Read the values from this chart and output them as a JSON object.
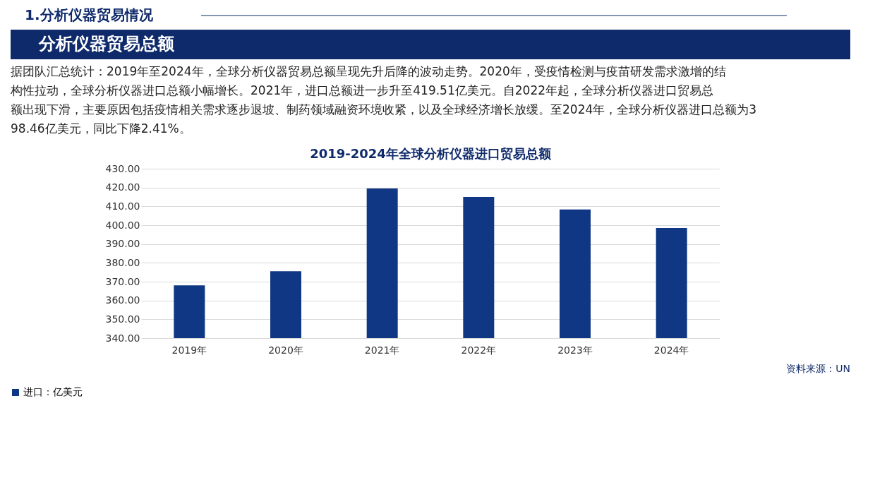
{
  "chart_data": {
    "type": "bar",
    "title": "2019-2024年全球分析仪器进口贸易总额",
    "subtitle": "1.分析仪器贸易情况",
    "annotations": [
      "分析仪器贸易总额",
      "据团队汇总统计：2019年至2024年，全球分析仪器贸易总额呈现先升后降的波动走势。2020年，受疫情检测与疫苗研发需求激增的结构性拉动，全球分析仪器进口总额小幅增长。2021年，进口总额进一步升至419.51亿美元。自2022年起，全球分析仪器进口贸易总额出现下滑，主要原因包括疫情相关需求逐步退坡、制药领域融资环境收紧，以及全球经济增长放缓。至2024年，全球分析仪器进口总额为398.46亿美元，同比下降2.41%。",
      "资料来源：UN"
    ],
    "categories": [
      "2019年",
      "2020年",
      "2021年",
      "2022年",
      "2023年",
      "2024年"
    ],
    "series": [
      {
        "name": "进口：亿美元",
        "color": "#0f3783",
        "values": [
          368.0,
          375.5,
          419.51,
          415.0,
          408.3,
          398.46
        ]
      }
    ],
    "ylim": [
      340,
      430
    ],
    "yticks": [
      {
        "value": 340,
        "label": "340.00"
      },
      {
        "value": 350,
        "label": "350.00"
      },
      {
        "value": 360,
        "label": "360.00"
      },
      {
        "value": 370,
        "label": "370.00"
      },
      {
        "value": 380,
        "label": "380.00"
      },
      {
        "value": 390,
        "label": "390.00"
      },
      {
        "value": 400,
        "label": "400.00"
      },
      {
        "value": 410,
        "label": "410.00"
      },
      {
        "value": 420,
        "label": "420.00"
      },
      {
        "value": 430,
        "label": "430.00"
      }
    ],
    "grid": "y",
    "legend": "bottom"
  }
}
